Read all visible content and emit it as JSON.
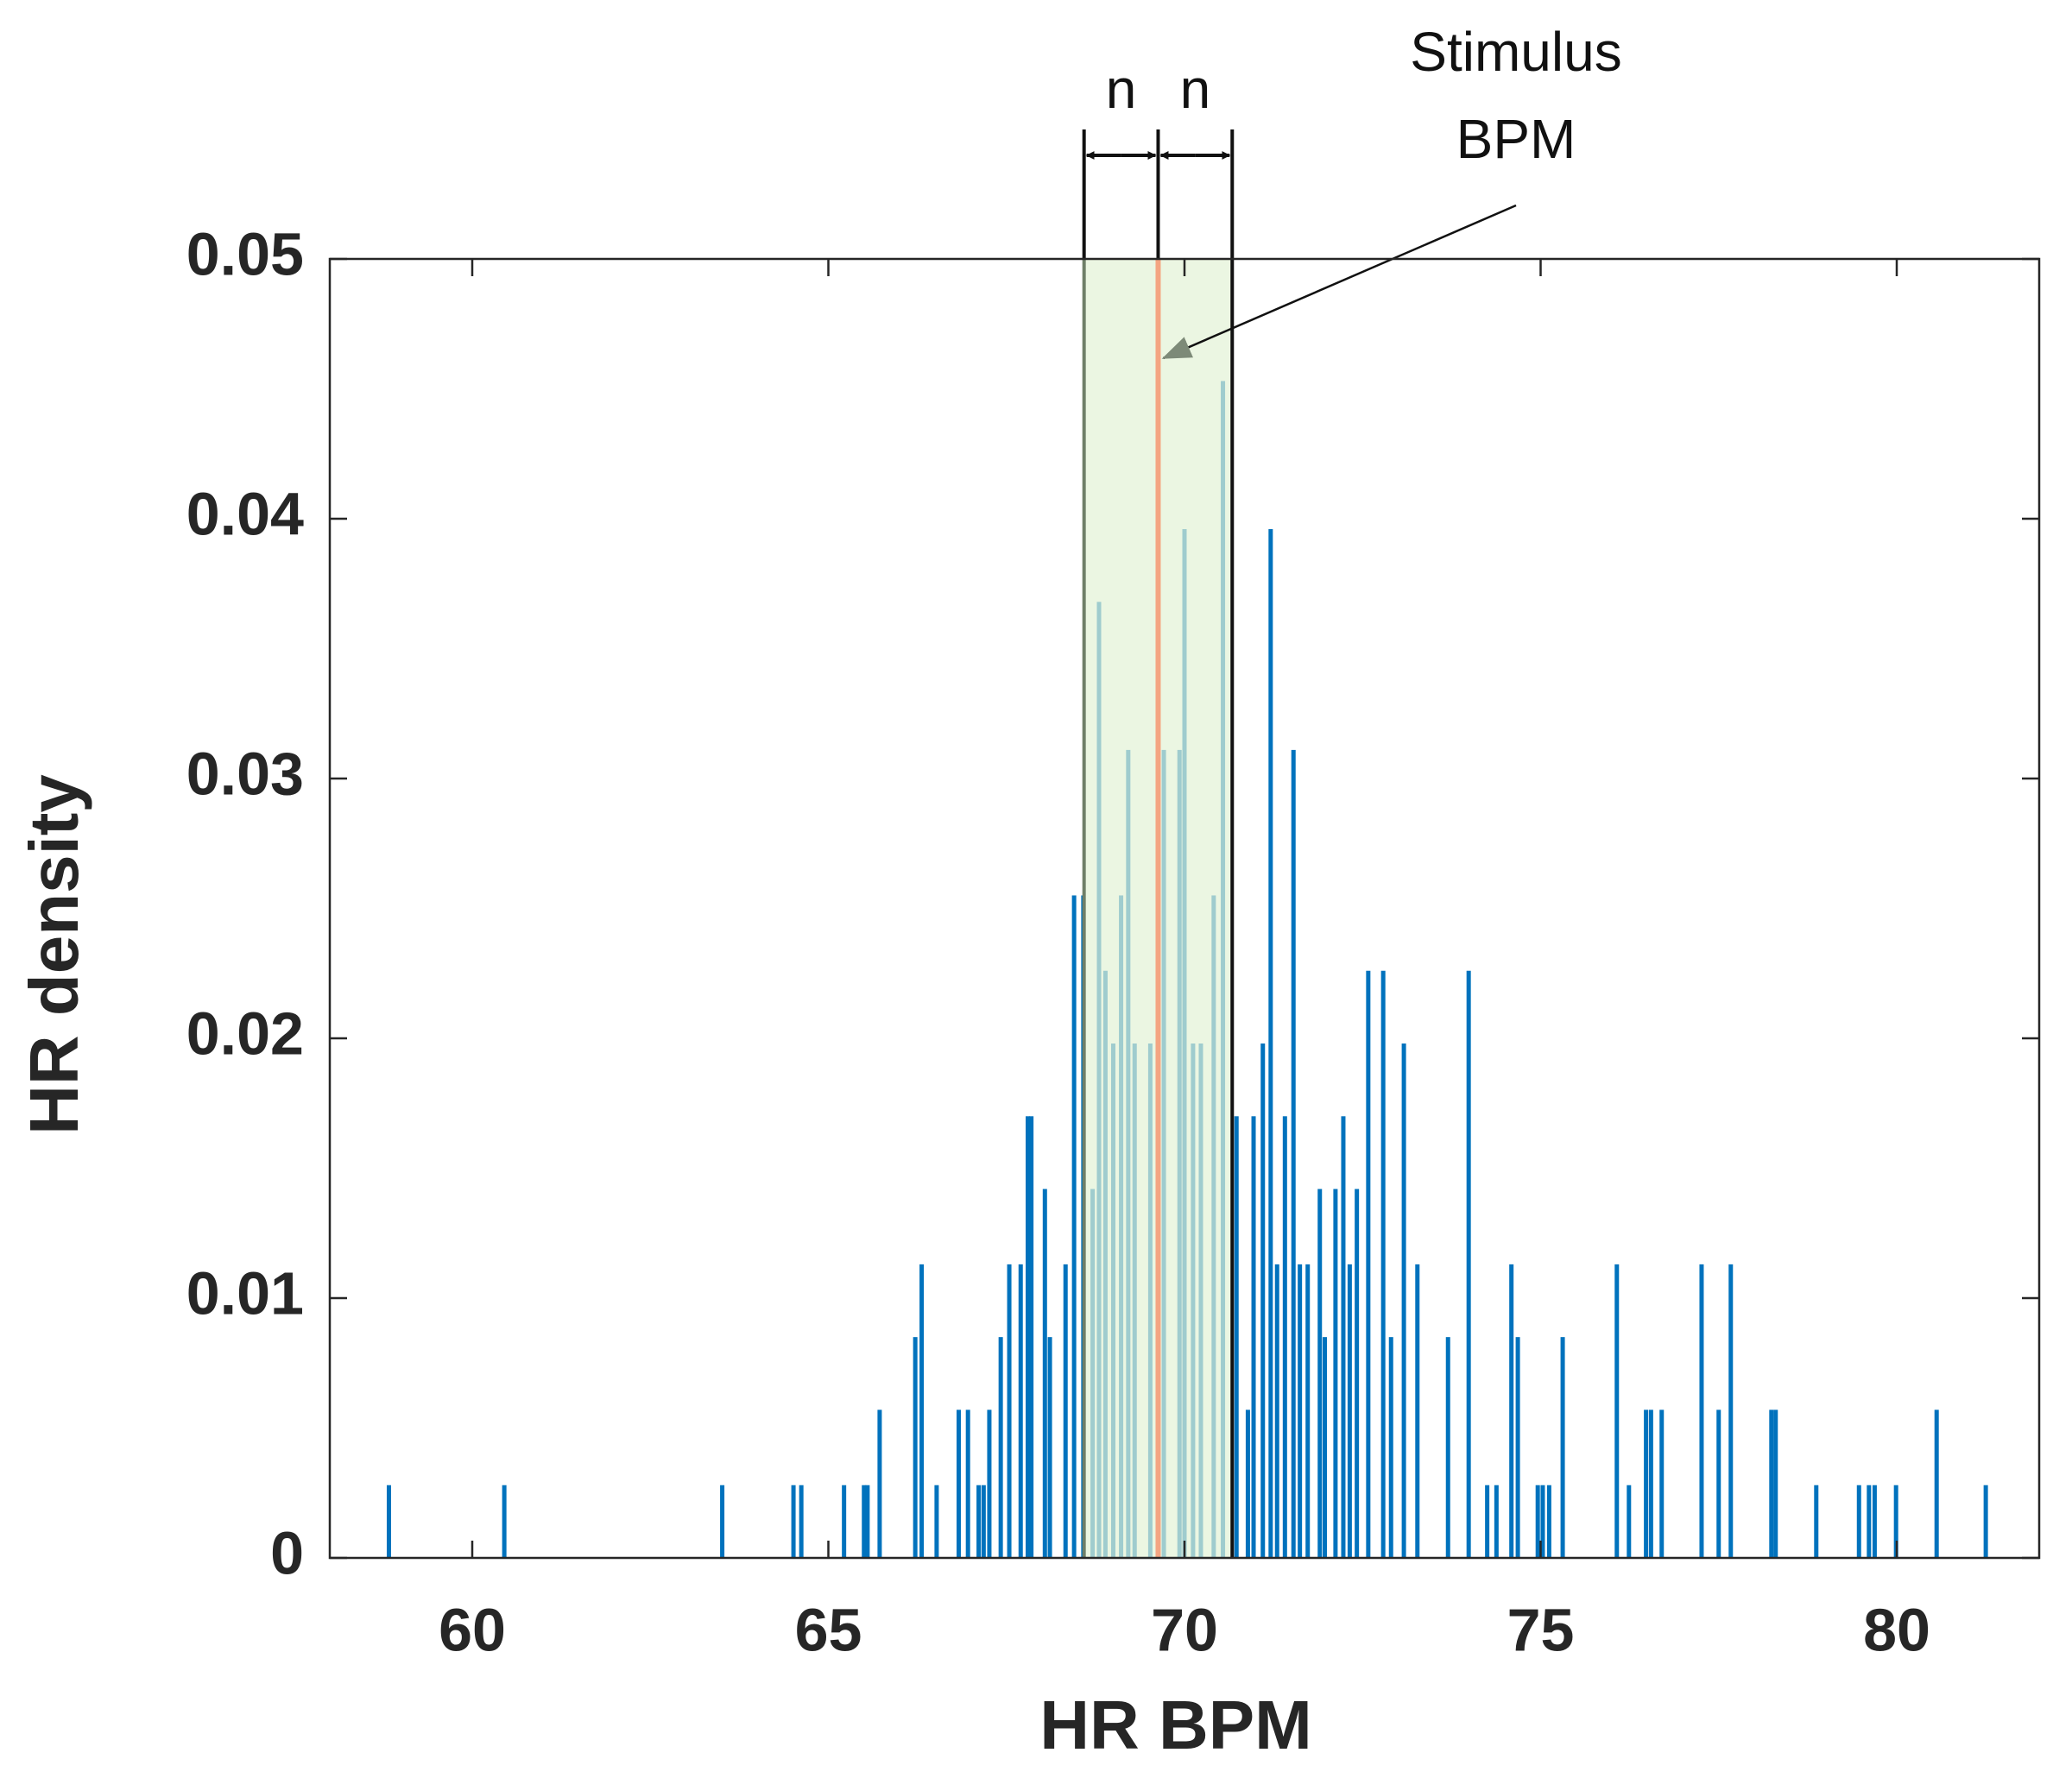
{
  "chart_data": {
    "type": "bar",
    "xlabel": "HR BPM",
    "ylabel": "HR density",
    "x": [
      58.83,
      60.45,
      63.51,
      64.51,
      64.62,
      65.22,
      65.5,
      65.55,
      65.72,
      66.22,
      66.31,
      66.52,
      66.83,
      66.96,
      67.11,
      67.18,
      67.26,
      67.42,
      67.54,
      67.7,
      67.8,
      67.85,
      68.04,
      68.11,
      68.33,
      68.45,
      68.58,
      68.71,
      68.8,
      68.89,
      69.0,
      69.11,
      69.21,
      69.3,
      69.52,
      69.71,
      69.93,
      70.0,
      70.12,
      70.23,
      70.41,
      70.54,
      70.73,
      70.89,
      70.97,
      71.1,
      71.21,
      71.3,
      71.41,
      71.53,
      71.62,
      71.73,
      71.9,
      71.97,
      72.12,
      72.23,
      72.32,
      72.42,
      72.58,
      72.79,
      72.9,
      73.08,
      73.27,
      73.7,
      73.99,
      74.25,
      74.38,
      74.59,
      74.68,
      74.96,
      75.03,
      75.12,
      75.31,
      76.07,
      76.24,
      76.48,
      76.55,
      76.7,
      77.26,
      77.5,
      77.67,
      78.24,
      78.3,
      78.87,
      79.47,
      79.61,
      79.69,
      79.99,
      80.56,
      81.25
    ],
    "values": [
      0.0028,
      0.0028,
      0.0028,
      0.0028,
      0.0028,
      0.0028,
      0.0028,
      0.0028,
      0.0057,
      0.0085,
      0.0113,
      0.0028,
      0.0057,
      0.0057,
      0.0028,
      0.0028,
      0.0057,
      0.0085,
      0.0113,
      0.0113,
      0.017,
      0.017,
      0.0142,
      0.0085,
      0.0113,
      0.0255,
      0.0255,
      0.0142,
      0.0368,
      0.0226,
      0.0198,
      0.0255,
      0.0311,
      0.0198,
      0.0198,
      0.0311,
      0.0311,
      0.0396,
      0.0198,
      0.0198,
      0.0255,
      0.0453,
      0.017,
      0.0057,
      0.017,
      0.0198,
      0.0396,
      0.0113,
      0.017,
      0.0311,
      0.0113,
      0.0113,
      0.0142,
      0.0085,
      0.0142,
      0.017,
      0.0113,
      0.0142,
      0.0226,
      0.0226,
      0.0085,
      0.0198,
      0.0113,
      0.0085,
      0.0226,
      0.0028,
      0.0028,
      0.0113,
      0.0085,
      0.0028,
      0.0028,
      0.0028,
      0.0085,
      0.0113,
      0.0028,
      0.0057,
      0.0057,
      0.0057,
      0.0113,
      0.0057,
      0.0113,
      0.0057,
      0.0057,
      0.0028,
      0.0028,
      0.0028,
      0.0028,
      0.0028,
      0.0057,
      0.0028
    ],
    "color": "#0072bd",
    "xlim": [
      58,
      82
    ],
    "xticks": [
      60,
      65,
      70,
      75,
      80
    ],
    "ylim": [
      0,
      0.05
    ],
    "yticks": [
      0,
      0.01,
      0.02,
      0.03,
      0.04,
      0.05
    ],
    "grid": false,
    "band": {
      "x0": 68.59,
      "x1": 70.67,
      "color": "#e3f2d6"
    },
    "stimulus": {
      "x": 69.63,
      "color": "#f4a582"
    },
    "band_labels": [
      "n",
      "n"
    ],
    "annotation_lines": [
      "Stimulus",
      "BPM"
    ]
  }
}
